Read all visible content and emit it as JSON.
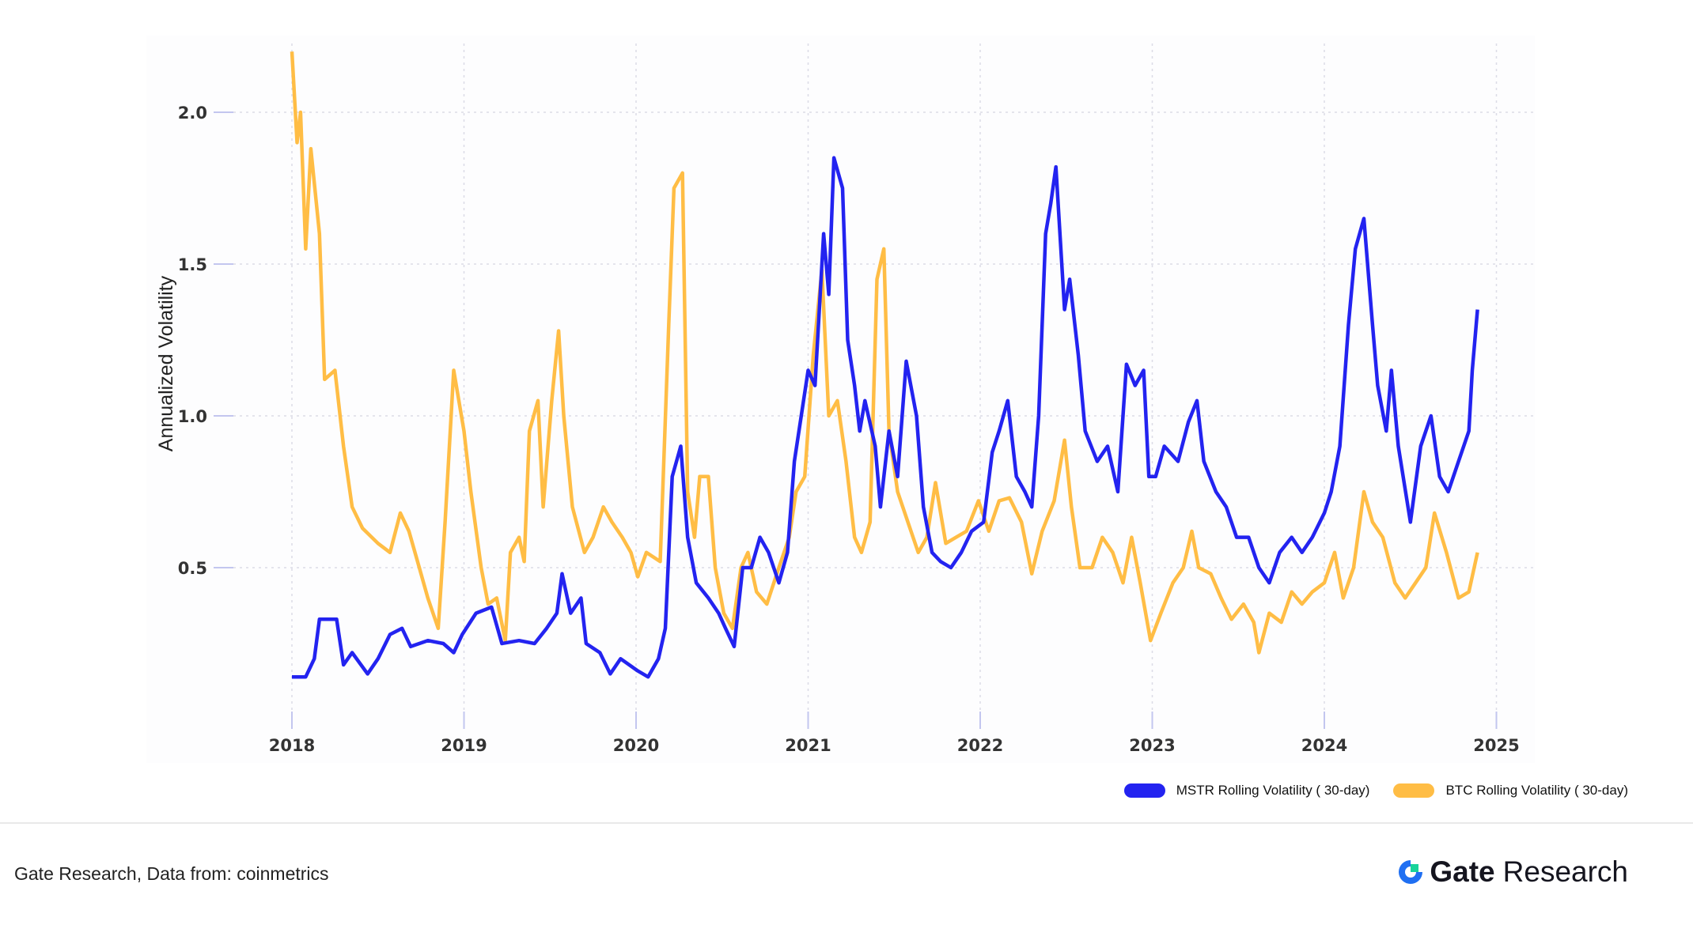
{
  "chart_data": {
    "type": "line",
    "title": "",
    "xlabel": "",
    "ylabel": "Annualized Volatility",
    "xlim": [
      2018,
      2025
    ],
    "ylim": [
      0,
      2.2
    ],
    "x_ticks": [
      "2018",
      "2019",
      "2020",
      "2021",
      "2022",
      "2023",
      "2024",
      "2025"
    ],
    "y_ticks": [
      "0.5",
      "1.0",
      "1.5",
      "2.0"
    ],
    "grid": true,
    "legend_placement": "bottom-right",
    "series": [
      {
        "name": "MSTR Rolling Volatility ( 30-day)",
        "color": "#2323f0",
        "points": [
          [
            2018.0,
            0.14
          ],
          [
            2018.08,
            0.14
          ],
          [
            2018.13,
            0.2
          ],
          [
            2018.16,
            0.33
          ],
          [
            2018.26,
            0.33
          ],
          [
            2018.3,
            0.18
          ],
          [
            2018.35,
            0.22
          ],
          [
            2018.44,
            0.15
          ],
          [
            2018.5,
            0.2
          ],
          [
            2018.57,
            0.28
          ],
          [
            2018.64,
            0.3
          ],
          [
            2018.69,
            0.24
          ],
          [
            2018.79,
            0.26
          ],
          [
            2018.88,
            0.25
          ],
          [
            2018.94,
            0.22
          ],
          [
            2018.99,
            0.28
          ],
          [
            2019.07,
            0.35
          ],
          [
            2019.16,
            0.37
          ],
          [
            2019.22,
            0.25
          ],
          [
            2019.32,
            0.26
          ],
          [
            2019.41,
            0.25
          ],
          [
            2019.48,
            0.3
          ],
          [
            2019.54,
            0.35
          ],
          [
            2019.57,
            0.48
          ],
          [
            2019.62,
            0.35
          ],
          [
            2019.68,
            0.4
          ],
          [
            2019.71,
            0.25
          ],
          [
            2019.79,
            0.22
          ],
          [
            2019.85,
            0.15
          ],
          [
            2019.91,
            0.2
          ],
          [
            2020.01,
            0.16
          ],
          [
            2020.07,
            0.14
          ],
          [
            2020.13,
            0.2
          ],
          [
            2020.17,
            0.3
          ],
          [
            2020.21,
            0.8
          ],
          [
            2020.26,
            0.9
          ],
          [
            2020.3,
            0.6
          ],
          [
            2020.35,
            0.45
          ],
          [
            2020.42,
            0.4
          ],
          [
            2020.48,
            0.35
          ],
          [
            2020.52,
            0.3
          ],
          [
            2020.57,
            0.24
          ],
          [
            2020.62,
            0.5
          ],
          [
            2020.67,
            0.5
          ],
          [
            2020.72,
            0.6
          ],
          [
            2020.77,
            0.55
          ],
          [
            2020.83,
            0.45
          ],
          [
            2020.88,
            0.55
          ],
          [
            2020.92,
            0.85
          ],
          [
            2020.96,
            1.0
          ],
          [
            2021.0,
            1.15
          ],
          [
            2021.04,
            1.1
          ],
          [
            2021.09,
            1.6
          ],
          [
            2021.12,
            1.4
          ],
          [
            2021.15,
            1.85
          ],
          [
            2021.2,
            1.75
          ],
          [
            2021.23,
            1.25
          ],
          [
            2021.27,
            1.1
          ],
          [
            2021.3,
            0.95
          ],
          [
            2021.33,
            1.05
          ],
          [
            2021.39,
            0.9
          ],
          [
            2021.42,
            0.7
          ],
          [
            2021.47,
            0.95
          ],
          [
            2021.52,
            0.8
          ],
          [
            2021.57,
            1.18
          ],
          [
            2021.63,
            1.0
          ],
          [
            2021.67,
            0.7
          ],
          [
            2021.72,
            0.55
          ],
          [
            2021.77,
            0.52
          ],
          [
            2021.83,
            0.5
          ],
          [
            2021.89,
            0.55
          ],
          [
            2021.95,
            0.62
          ],
          [
            2022.02,
            0.65
          ],
          [
            2022.07,
            0.88
          ],
          [
            2022.11,
            0.95
          ],
          [
            2022.16,
            1.05
          ],
          [
            2022.21,
            0.8
          ],
          [
            2022.26,
            0.75
          ],
          [
            2022.3,
            0.7
          ],
          [
            2022.34,
            1.0
          ],
          [
            2022.38,
            1.6
          ],
          [
            2022.41,
            1.7
          ],
          [
            2022.44,
            1.82
          ],
          [
            2022.49,
            1.35
          ],
          [
            2022.52,
            1.45
          ],
          [
            2022.57,
            1.2
          ],
          [
            2022.61,
            0.95
          ],
          [
            2022.68,
            0.85
          ],
          [
            2022.74,
            0.9
          ],
          [
            2022.8,
            0.75
          ],
          [
            2022.85,
            1.17
          ],
          [
            2022.9,
            1.1
          ],
          [
            2022.95,
            1.15
          ],
          [
            2022.98,
            0.8
          ],
          [
            2023.02,
            0.8
          ],
          [
            2023.07,
            0.9
          ],
          [
            2023.15,
            0.85
          ],
          [
            2023.21,
            0.98
          ],
          [
            2023.26,
            1.05
          ],
          [
            2023.3,
            0.85
          ],
          [
            2023.37,
            0.75
          ],
          [
            2023.43,
            0.7
          ],
          [
            2023.49,
            0.6
          ],
          [
            2023.56,
            0.6
          ],
          [
            2023.62,
            0.5
          ],
          [
            2023.68,
            0.45
          ],
          [
            2023.74,
            0.55
          ],
          [
            2023.81,
            0.6
          ],
          [
            2023.87,
            0.55
          ],
          [
            2023.93,
            0.6
          ],
          [
            2024.0,
            0.68
          ],
          [
            2024.04,
            0.75
          ],
          [
            2024.09,
            0.9
          ],
          [
            2024.14,
            1.3
          ],
          [
            2024.18,
            1.55
          ],
          [
            2024.23,
            1.65
          ],
          [
            2024.28,
            1.3
          ],
          [
            2024.31,
            1.1
          ],
          [
            2024.36,
            0.95
          ],
          [
            2024.39,
            1.15
          ],
          [
            2024.43,
            0.9
          ],
          [
            2024.5,
            0.65
          ],
          [
            2024.56,
            0.9
          ],
          [
            2024.62,
            1.0
          ],
          [
            2024.67,
            0.8
          ],
          [
            2024.72,
            0.75
          ],
          [
            2024.78,
            0.85
          ],
          [
            2024.84,
            0.95
          ],
          [
            2024.86,
            1.15
          ],
          [
            2024.89,
            1.35
          ]
        ]
      },
      {
        "name": "BTC Rolling Volatility ( 30-day)",
        "color": "#ffbd45",
        "points": [
          [
            2018.0,
            2.2
          ],
          [
            2018.03,
            1.9
          ],
          [
            2018.05,
            2.0
          ],
          [
            2018.08,
            1.55
          ],
          [
            2018.11,
            1.88
          ],
          [
            2018.16,
            1.6
          ],
          [
            2018.19,
            1.12
          ],
          [
            2018.25,
            1.15
          ],
          [
            2018.3,
            0.9
          ],
          [
            2018.35,
            0.7
          ],
          [
            2018.41,
            0.63
          ],
          [
            2018.5,
            0.58
          ],
          [
            2018.57,
            0.55
          ],
          [
            2018.63,
            0.68
          ],
          [
            2018.68,
            0.62
          ],
          [
            2018.74,
            0.5
          ],
          [
            2018.79,
            0.4
          ],
          [
            2018.85,
            0.3
          ],
          [
            2018.89,
            0.65
          ],
          [
            2018.94,
            1.15
          ],
          [
            2019.0,
            0.95
          ],
          [
            2019.04,
            0.75
          ],
          [
            2019.1,
            0.5
          ],
          [
            2019.14,
            0.38
          ],
          [
            2019.19,
            0.4
          ],
          [
            2019.24,
            0.26
          ],
          [
            2019.27,
            0.55
          ],
          [
            2019.32,
            0.6
          ],
          [
            2019.35,
            0.52
          ],
          [
            2019.38,
            0.95
          ],
          [
            2019.43,
            1.05
          ],
          [
            2019.46,
            0.7
          ],
          [
            2019.51,
            1.05
          ],
          [
            2019.55,
            1.28
          ],
          [
            2019.58,
            1.0
          ],
          [
            2019.63,
            0.7
          ],
          [
            2019.7,
            0.55
          ],
          [
            2019.75,
            0.6
          ],
          [
            2019.81,
            0.7
          ],
          [
            2019.86,
            0.65
          ],
          [
            2019.92,
            0.6
          ],
          [
            2019.97,
            0.55
          ],
          [
            2020.01,
            0.47
          ],
          [
            2020.06,
            0.55
          ],
          [
            2020.14,
            0.52
          ],
          [
            2020.19,
            1.3
          ],
          [
            2020.22,
            1.75
          ],
          [
            2020.27,
            1.8
          ],
          [
            2020.3,
            0.75
          ],
          [
            2020.34,
            0.6
          ],
          [
            2020.37,
            0.8
          ],
          [
            2020.42,
            0.8
          ],
          [
            2020.46,
            0.5
          ],
          [
            2020.51,
            0.35
          ],
          [
            2020.56,
            0.3
          ],
          [
            2020.61,
            0.5
          ],
          [
            2020.65,
            0.55
          ],
          [
            2020.7,
            0.42
          ],
          [
            2020.76,
            0.38
          ],
          [
            2020.83,
            0.5
          ],
          [
            2020.89,
            0.6
          ],
          [
            2020.93,
            0.75
          ],
          [
            2020.98,
            0.8
          ],
          [
            2021.03,
            1.2
          ],
          [
            2021.08,
            1.48
          ],
          [
            2021.12,
            1.0
          ],
          [
            2021.17,
            1.05
          ],
          [
            2021.22,
            0.85
          ],
          [
            2021.27,
            0.6
          ],
          [
            2021.31,
            0.55
          ],
          [
            2021.36,
            0.65
          ],
          [
            2021.4,
            1.45
          ],
          [
            2021.44,
            1.55
          ],
          [
            2021.47,
            0.95
          ],
          [
            2021.52,
            0.75
          ],
          [
            2021.58,
            0.65
          ],
          [
            2021.64,
            0.55
          ],
          [
            2021.69,
            0.6
          ],
          [
            2021.74,
            0.78
          ],
          [
            2021.8,
            0.58
          ],
          [
            2021.86,
            0.6
          ],
          [
            2021.92,
            0.62
          ],
          [
            2021.99,
            0.72
          ],
          [
            2022.05,
            0.62
          ],
          [
            2022.11,
            0.72
          ],
          [
            2022.17,
            0.73
          ],
          [
            2022.24,
            0.65
          ],
          [
            2022.3,
            0.48
          ],
          [
            2022.36,
            0.62
          ],
          [
            2022.43,
            0.72
          ],
          [
            2022.49,
            0.92
          ],
          [
            2022.53,
            0.7
          ],
          [
            2022.58,
            0.5
          ],
          [
            2022.65,
            0.5
          ],
          [
            2022.71,
            0.6
          ],
          [
            2022.77,
            0.55
          ],
          [
            2022.83,
            0.45
          ],
          [
            2022.88,
            0.6
          ],
          [
            2022.93,
            0.45
          ],
          [
            2022.99,
            0.26
          ],
          [
            2023.05,
            0.35
          ],
          [
            2023.12,
            0.45
          ],
          [
            2023.18,
            0.5
          ],
          [
            2023.23,
            0.62
          ],
          [
            2023.27,
            0.5
          ],
          [
            2023.34,
            0.48
          ],
          [
            2023.4,
            0.4
          ],
          [
            2023.46,
            0.33
          ],
          [
            2023.53,
            0.38
          ],
          [
            2023.59,
            0.32
          ],
          [
            2023.62,
            0.22
          ],
          [
            2023.68,
            0.35
          ],
          [
            2023.75,
            0.32
          ],
          [
            2023.81,
            0.42
          ],
          [
            2023.87,
            0.38
          ],
          [
            2023.93,
            0.42
          ],
          [
            2024.0,
            0.45
          ],
          [
            2024.06,
            0.55
          ],
          [
            2024.11,
            0.4
          ],
          [
            2024.17,
            0.5
          ],
          [
            2024.23,
            0.75
          ],
          [
            2024.28,
            0.65
          ],
          [
            2024.34,
            0.6
          ],
          [
            2024.41,
            0.45
          ],
          [
            2024.47,
            0.4
          ],
          [
            2024.53,
            0.45
          ],
          [
            2024.59,
            0.5
          ],
          [
            2024.64,
            0.68
          ],
          [
            2024.71,
            0.55
          ],
          [
            2024.78,
            0.4
          ],
          [
            2024.84,
            0.42
          ],
          [
            2024.89,
            0.55
          ]
        ]
      }
    ]
  },
  "footer": {
    "source": "Gate Research, Data from:  coinmetrics",
    "logo_text": "Gate Research",
    "logo_brand": "Gate",
    "logo_suffix": "Research"
  }
}
